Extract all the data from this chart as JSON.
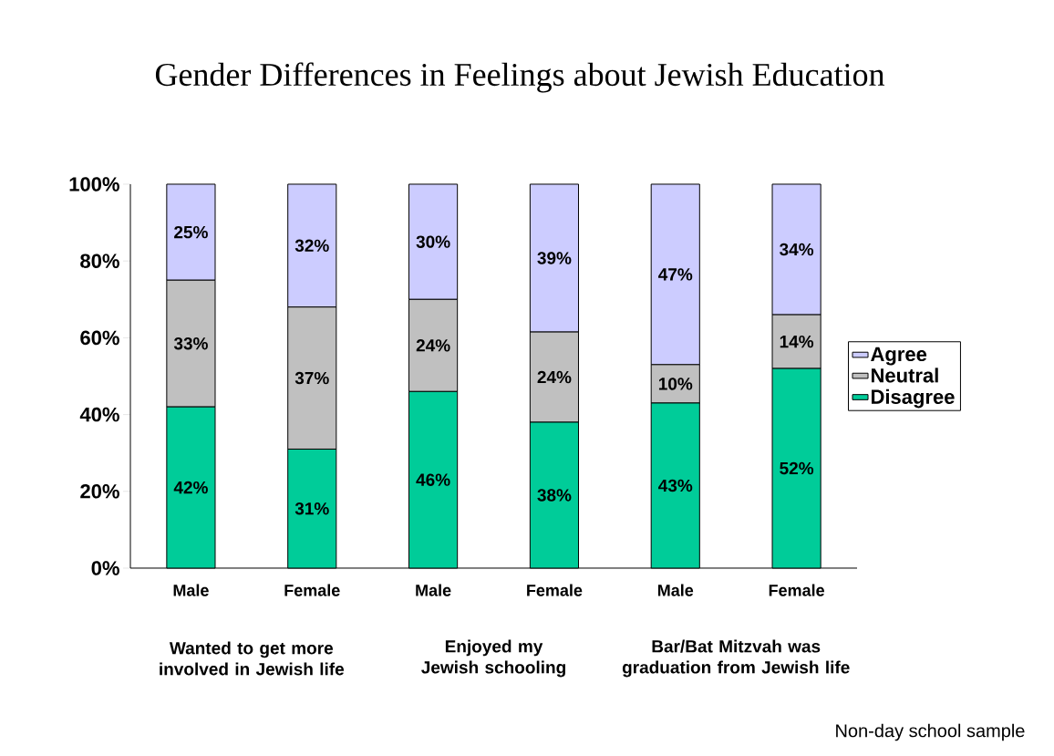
{
  "chart_data": {
    "type": "bar",
    "stacked": true,
    "title": "Gender Differences in Feelings about Jewish Education",
    "categories": [
      "Male",
      "Female",
      "Male",
      "Female",
      "Male",
      "Female"
    ],
    "series": [
      {
        "name": "Disagree",
        "color": "#00cc99",
        "values": [
          42,
          31,
          46,
          38,
          43,
          52
        ],
        "value_labels": [
          "42%",
          "31%",
          "46%",
          "38%",
          "43%",
          "52%"
        ]
      },
      {
        "name": "Neutral",
        "color": "#c0c0c0",
        "values": [
          33,
          37,
          24,
          23.5,
          10,
          14
        ],
        "value_labels": [
          "33%",
          "37%",
          "24%",
          "24%",
          "10%",
          "14%"
        ]
      },
      {
        "name": "Agree",
        "color": "#ccccff",
        "values": [
          25,
          32,
          30,
          38.5,
          47,
          34
        ],
        "value_labels": [
          "25%",
          "32%",
          "30%",
          "39%",
          "47%",
          "34%"
        ]
      }
    ],
    "ylim": [
      0,
      100
    ],
    "yticks": [
      {
        "value": 0,
        "label": "0%"
      },
      {
        "value": 20,
        "label": "20%"
      },
      {
        "value": 40,
        "label": "40%"
      },
      {
        "value": 60,
        "label": "60%"
      },
      {
        "value": 80,
        "label": "80%"
      },
      {
        "value": 100,
        "label": "100%"
      }
    ],
    "legend": "right",
    "annotations": [
      "Wanted to get more involved in Jewish life",
      "Enjoyed my Jewish schooling",
      "Bar/Bat Mitzvah was graduation from Jewish life",
      "Non-day school sample"
    ]
  }
}
